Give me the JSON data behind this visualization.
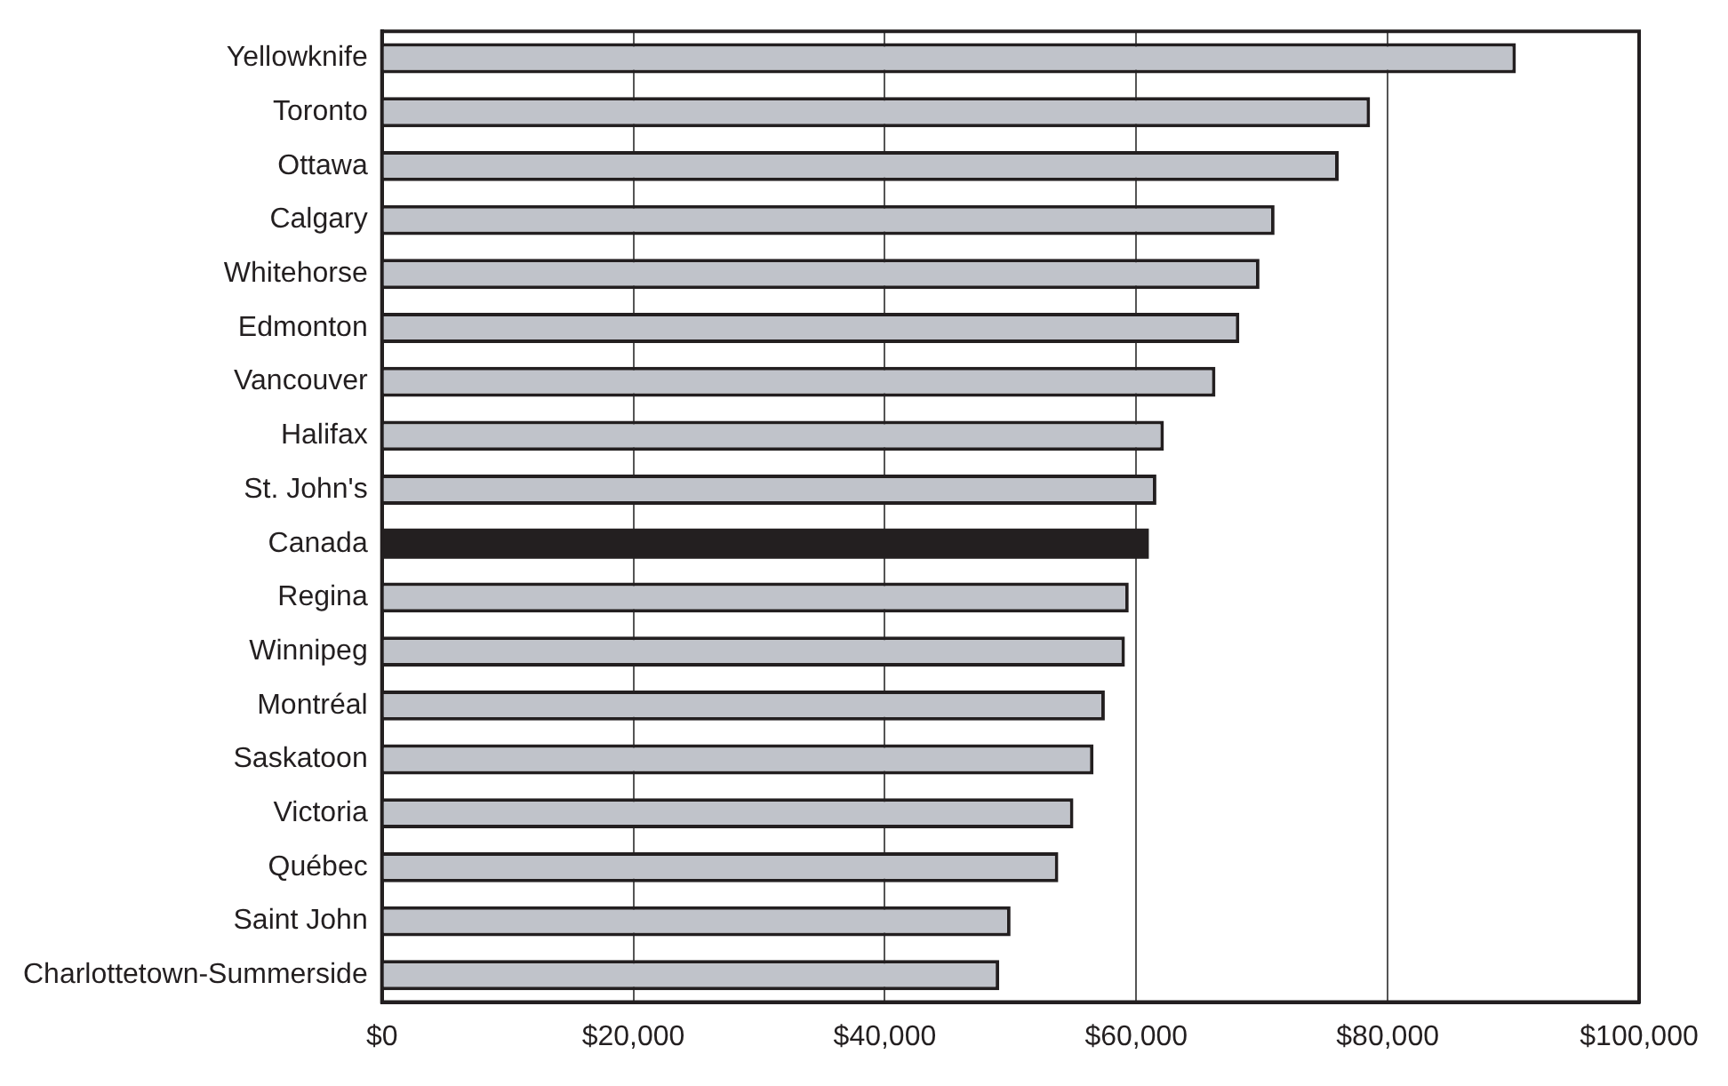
{
  "chart_data": {
    "type": "bar",
    "orientation": "horizontal",
    "categories": [
      "Yellowknife",
      "Toronto",
      "Ottawa",
      "Calgary",
      "Whitehorse",
      "Edmonton",
      "Vancouver",
      "Halifax",
      "St. John's",
      "Canada",
      "Regina",
      "Winnipeg",
      "Montréal",
      "Saskatoon",
      "Victoria",
      "Québec",
      "Saint John",
      "Charlottetown-Summerside"
    ],
    "values": [
      90200,
      78600,
      76100,
      71000,
      69800,
      68200,
      66300,
      62200,
      61600,
      61000,
      59400,
      59100,
      57500,
      56600,
      55000,
      53800,
      50000,
      49100
    ],
    "colors": [
      "#c0c3ca",
      "#c0c3ca",
      "#c0c3ca",
      "#c0c3ca",
      "#c0c3ca",
      "#c0c3ca",
      "#c0c3ca",
      "#c0c3ca",
      "#c0c3ca",
      "#231f20",
      "#c0c3ca",
      "#c0c3ca",
      "#c0c3ca",
      "#c0c3ca",
      "#c0c3ca",
      "#c0c3ca",
      "#c0c3ca",
      "#c0c3ca"
    ],
    "xlim": [
      0,
      100000
    ],
    "xticks": [
      {
        "value": 0,
        "label": "$0"
      },
      {
        "value": 20000,
        "label": "$20,000"
      },
      {
        "value": 40000,
        "label": "$40,000"
      },
      {
        "value": 60000,
        "label": "$60,000"
      },
      {
        "value": 80000,
        "label": "$80,000"
      },
      {
        "value": 100000,
        "label": "$100,000"
      }
    ],
    "grid": "x"
  }
}
